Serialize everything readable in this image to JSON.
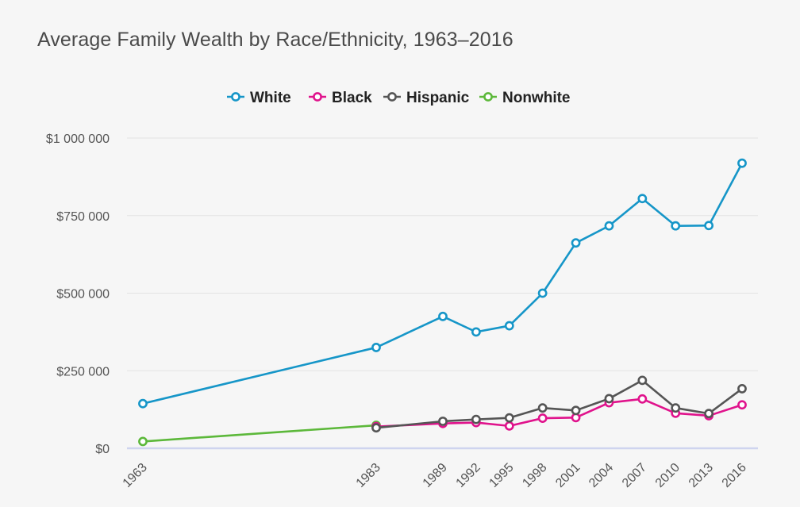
{
  "chart_data": {
    "type": "line",
    "title": "Average Family Wealth by Race/Ethnicity, 1963–2016",
    "xlabel": "",
    "ylabel": "",
    "x": [
      1963,
      1983,
      1989,
      1992,
      1995,
      1998,
      2001,
      2004,
      2007,
      2010,
      2013,
      2016
    ],
    "x_tick_labels": [
      "1963",
      "1983",
      "1989",
      "1992",
      "1995",
      "1998",
      "2001",
      "2004",
      "2007",
      "2010",
      "2013",
      "2016"
    ],
    "y_ticks": [
      0,
      250000,
      500000,
      750000,
      1000000
    ],
    "y_tick_labels": [
      "$0",
      "$250 000",
      "$500 000",
      "$750 000",
      "$1 000 000"
    ],
    "ylim": [
      0,
      1000000
    ],
    "legend_position": "top-center",
    "grid": true,
    "series": [
      {
        "name": "White",
        "color": "#1696c8",
        "x": [
          1963,
          1983,
          1989,
          1992,
          1995,
          1998,
          2001,
          2004,
          2007,
          2010,
          2013,
          2016
        ],
        "values": [
          144000,
          325000,
          425000,
          375000,
          395000,
          500000,
          662000,
          717000,
          805000,
          717000,
          718000,
          919000
        ]
      },
      {
        "name": "Black",
        "color": "#e0138c",
        "x": [
          1983,
          1989,
          1992,
          1995,
          1998,
          2001,
          2004,
          2007,
          2010,
          2013,
          2016
        ],
        "values": [
          70000,
          80000,
          83000,
          72000,
          97000,
          99000,
          147000,
          159000,
          113000,
          105000,
          140000
        ]
      },
      {
        "name": "Hispanic",
        "color": "#555555",
        "x": [
          1983,
          1989,
          1992,
          1995,
          1998,
          2001,
          2004,
          2007,
          2010,
          2013,
          2016
        ],
        "values": [
          66000,
          87000,
          93000,
          98000,
          130000,
          122000,
          160000,
          219000,
          130000,
          112000,
          192000
        ]
      },
      {
        "name": "Nonwhite",
        "color": "#5cb83a",
        "x": [
          1963,
          1983
        ],
        "values": [
          22000,
          74000
        ]
      }
    ]
  }
}
